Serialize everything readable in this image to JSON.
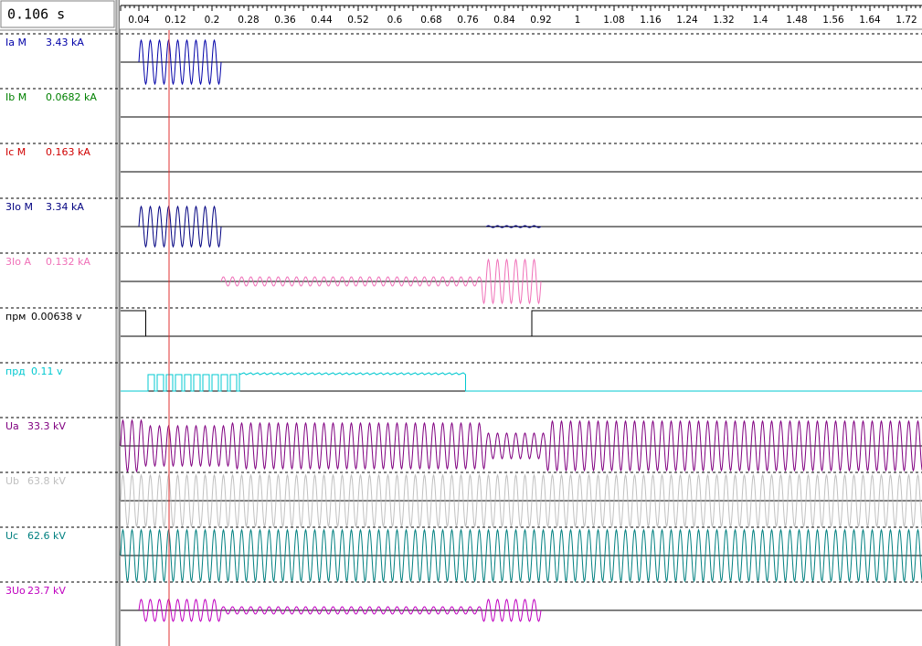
{
  "cursor": "0.106 s",
  "time_axis": {
    "ticks": [
      "0.04",
      "0.12",
      "0.2",
      "0.28",
      "0.36",
      "0.44",
      "0.52",
      "0.6",
      "0.68",
      "0.76",
      "0.84",
      "0.92",
      "1",
      "1.08",
      "1.16",
      "1.24",
      "1.32",
      "1.4",
      "1.48",
      "1.56",
      "1.64",
      "1.72"
    ]
  },
  "channels": [
    {
      "name": "Ia M",
      "value": "3.43 kA",
      "color": "#0000a8"
    },
    {
      "name": "Ib M",
      "value": "0.0682 kA",
      "color": "#008000"
    },
    {
      "name": "Ic M",
      "value": "0.163 kA",
      "color": "#d00000"
    },
    {
      "name": "3Io M",
      "value": "3.34 kA",
      "color": "#000080"
    },
    {
      "name": "3Io A",
      "value": "0.132 kA",
      "color": "#f070b8"
    },
    {
      "name": "прм",
      "value": "0.00638 v",
      "color": "#000000"
    },
    {
      "name": "прд",
      "value": "0.11 v",
      "color": "#00c8d0"
    },
    {
      "name": "Ua",
      "value": "33.3 kV",
      "color": "#800080"
    },
    {
      "name": "Ub",
      "value": "63.8 kV",
      "color": "#c0c0c0"
    },
    {
      "name": "Uc",
      "value": "62.6 kV",
      "color": "#008080"
    },
    {
      "name": "3Uo",
      "value": "23.7 kV",
      "color": "#c000c0"
    }
  ]
}
